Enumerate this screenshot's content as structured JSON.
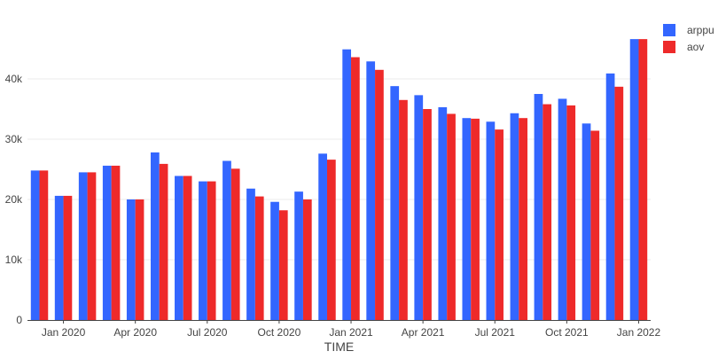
{
  "chart_data": {
    "type": "bar",
    "title": "",
    "xlabel": "TIME",
    "ylabel": "",
    "ylim": [
      0,
      50000
    ],
    "grid": "horizontal",
    "legend_position": "top-right",
    "periods": [
      "2019-12",
      "2020-01",
      "2020-02",
      "2020-03",
      "2020-04",
      "2020-05",
      "2020-06",
      "2020-07",
      "2020-08",
      "2020-09",
      "2020-10",
      "2020-11",
      "2020-12",
      "2021-01",
      "2021-02",
      "2021-03",
      "2021-04",
      "2021-05",
      "2021-06",
      "2021-07",
      "2021-08",
      "2021-09",
      "2021-10",
      "2021-11",
      "2021-12",
      "2022-01"
    ],
    "x_tick_labels": [
      "Jan 2020",
      "Apr 2020",
      "Jul 2020",
      "Oct 2020",
      "Jan 2021",
      "Apr 2021",
      "Jul 2021",
      "Oct 2021",
      "Jan 2022"
    ],
    "x_tick_periods": [
      "2020-01",
      "2020-04",
      "2020-07",
      "2020-10",
      "2021-01",
      "2021-04",
      "2021-07",
      "2021-10",
      "2022-01"
    ],
    "y_ticks": [
      0,
      10000,
      20000,
      30000,
      40000
    ],
    "y_tick_labels": [
      "0",
      "10k",
      "20k",
      "30k",
      "40k"
    ],
    "series": [
      {
        "name": "arppu",
        "color": "#3366ff",
        "values": [
          24800,
          20600,
          24500,
          25600,
          20000,
          27800,
          23900,
          23000,
          26400,
          21800,
          19600,
          21300,
          27600,
          44900,
          42900,
          38800,
          37300,
          35300,
          33500,
          32900,
          34300,
          37500,
          36700,
          32600,
          40900,
          46600
        ]
      },
      {
        "name": "aov",
        "color": "#ee2a2a",
        "values": [
          24800,
          20600,
          24500,
          25600,
          20000,
          25900,
          23900,
          23000,
          25100,
          20500,
          18200,
          20000,
          26600,
          43600,
          41500,
          36500,
          35000,
          34200,
          33400,
          31600,
          33500,
          35800,
          35600,
          31400,
          38700,
          46600
        ]
      }
    ]
  }
}
